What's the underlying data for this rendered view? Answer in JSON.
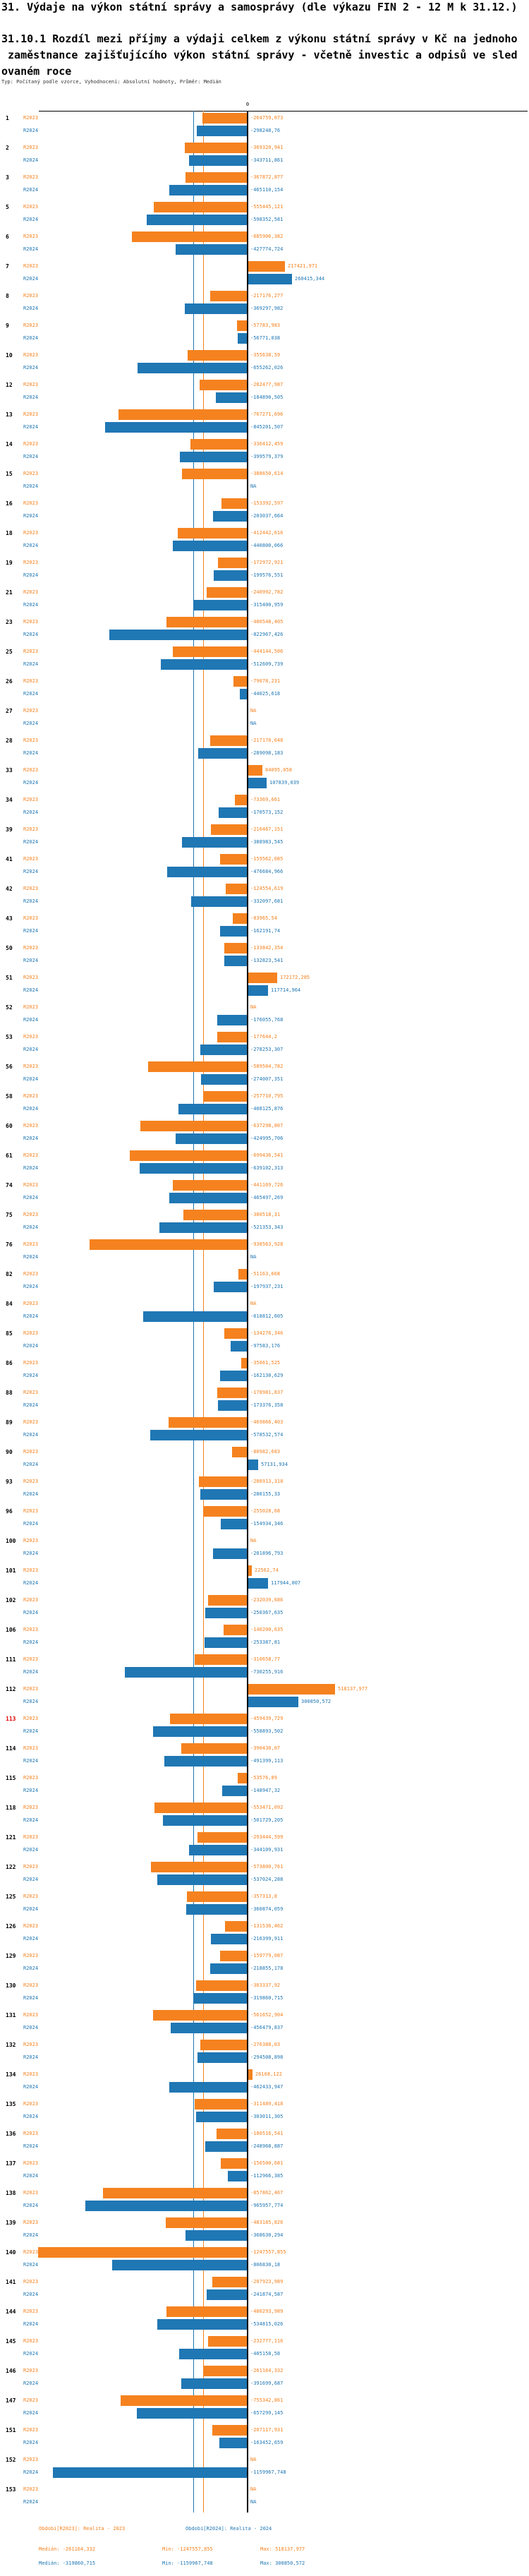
{
  "title": "31. Výdaje na výkon státní správy a samosprávy (dle výkazu FIN 2 - 12 M k 31.12.)",
  "subtitle_lines": [
    "31.10.1 Rozdíl mezi příjmy a výdaji celkem z výkonu státní správy v Kč na jednoho",
    " zaměstnance zajišťujícího výkon státní správy - včetně investic a odpisů ve sled",
    "ovaném roce"
  ],
  "meta": "Typ: Počítaný podle vzorce, Vyhodnocení: Absolutní hodnoty, Průměr: Medián",
  "chart_data": {
    "type": "bar",
    "orientation": "horizontal",
    "unit": "Kč",
    "zero_label": "0",
    "series_labels": {
      "r2023": "R2023",
      "r2024": "R2024"
    },
    "colors": {
      "r2023": "#f5821f",
      "r2024": "#1f77b4",
      "axis": "#000000",
      "highlight": "#e00000"
    },
    "medians": {
      "r2023": -261164.332,
      "r2024": -319860.715
    },
    "x_range": [
      -1310000,
      560000
    ],
    "rows": [
      {
        "n": "1",
        "r2023": "-264759,073",
        "r2024": "-298248,76"
      },
      {
        "n": "2",
        "r2023": "-369320,941",
        "r2024": "-343711,861"
      },
      {
        "n": "3",
        "r2023": "-367872,877",
        "r2024": "-465110,154"
      },
      {
        "n": "5",
        "r2023": "-555445,121",
        "r2024": "-598352,581"
      },
      {
        "n": "6",
        "r2023": "-685906,382",
        "r2024": "-427774,724"
      },
      {
        "n": "7",
        "r2023": "217421,971",
        "r2024": "260415,344"
      },
      {
        "n": "8",
        "r2023": "-217176,277",
        "r2024": "-369297,982"
      },
      {
        "n": "9",
        "r2023": "-57783,983",
        "r2024": "-56771,038"
      },
      {
        "n": "10",
        "r2023": "-355638,59",
        "r2024": "-655262,026"
      },
      {
        "n": "12",
        "r2023": "-282477,987",
        "r2024": "-184890,505"
      },
      {
        "n": "13",
        "r2023": "-767271,696",
        "r2024": "-845201,507"
      },
      {
        "n": "14",
        "r2023": "-336412,459",
        "r2024": "-399579,379"
      },
      {
        "n": "15",
        "r2023": "-388650,614",
        "r2024": "NA"
      },
      {
        "n": "16",
        "r2023": "-153392,597",
        "r2024": "-203037,664"
      },
      {
        "n": "18",
        "r2023": "-412442,616",
        "r2024": "-440800,066"
      },
      {
        "n": "19",
        "r2023": "-172972,921",
        "r2024": "-199576,551"
      },
      {
        "n": "21",
        "r2023": "-240992,782",
        "r2024": "-315400,959"
      },
      {
        "n": "23",
        "r2023": "-480548,405",
        "r2024": "-822967,426"
      },
      {
        "n": "25",
        "r2023": "-444144,506",
        "r2024": "-512609,739"
      },
      {
        "n": "26",
        "r2023": "-79078,231",
        "r2024": "-44025,618"
      },
      {
        "n": "27",
        "r2023": "NA",
        "r2024": "NA"
      },
      {
        "n": "28",
        "r2023": "-217170,648",
        "r2024": "-289098,183"
      },
      {
        "n": "33",
        "r2023": "84095,058",
        "r2024": "107839,039"
      },
      {
        "n": "34",
        "r2023": "-73369,661",
        "r2024": "-170573,152"
      },
      {
        "n": "39",
        "r2023": "-216467,151",
        "r2024": "-388983,545"
      },
      {
        "n": "41",
        "r2023": "-159562,085",
        "r2024": "-476684,966"
      },
      {
        "n": "42",
        "r2023": "-124554,619",
        "r2024": "-332097,681"
      },
      {
        "n": "43",
        "r2023": "-83965,54",
        "r2024": "-162191,74"
      },
      {
        "n": "50",
        "r2023": "-133842,354",
        "r2024": "-132823,541"
      },
      {
        "n": "51",
        "r2023": "172172,285",
        "r2024": "117714,964"
      },
      {
        "n": "52",
        "r2023": "NA",
        "r2024": "-176055,768"
      },
      {
        "n": "53",
        "r2023": "-177644,2",
        "r2024": "-278253,307"
      },
      {
        "n": "56",
        "r2023": "-589504,782",
        "r2024": "-274007,351"
      },
      {
        "n": "58",
        "r2023": "-257710,795",
        "r2024": "-408125,876"
      },
      {
        "n": "60",
        "r2023": "-637298,807",
        "r2024": "-424995,706"
      },
      {
        "n": "61",
        "r2023": "-699436,541",
        "r2024": "-639102,313"
      },
      {
        "n": "74",
        "r2023": "-441169,726",
        "r2024": "-465497,269"
      },
      {
        "n": "75",
        "r2023": "-380518,31",
        "r2024": "-521353,343"
      },
      {
        "n": "76",
        "r2023": "-938563,928",
        "r2024": "NA"
      },
      {
        "n": "82",
        "r2023": "-51163,668",
        "r2024": "-197937,231"
      },
      {
        "n": "84",
        "r2023": "NA",
        "r2024": "-618812,605"
      },
      {
        "n": "85",
        "r2023": "-134276,346",
        "r2024": "-97583,176"
      },
      {
        "n": "86",
        "r2023": "-35061,525",
        "r2024": "-162130,629"
      },
      {
        "n": "88",
        "r2023": "-178981,837",
        "r2024": "-173376,358"
      },
      {
        "n": "89",
        "r2023": "-469866,403",
        "r2024": "-578532,574"
      },
      {
        "n": "90",
        "r2023": "-88982,683",
        "r2024": "57131,934"
      },
      {
        "n": "93",
        "r2023": "-286913,318",
        "r2024": "-280155,33"
      },
      {
        "n": "96",
        "r2023": "-255028,68",
        "r2024": "-154934,346"
      },
      {
        "n": "100",
        "r2023": "NA",
        "r2024": "-201896,793"
      },
      {
        "n": "101",
        "r2023": "22562,74",
        "r2024": "117944,007"
      },
      {
        "n": "102",
        "r2023": "-232039,686",
        "r2024": "-250367,635"
      },
      {
        "n": "106",
        "r2023": "-140200,635",
        "r2024": "-253387,81"
      },
      {
        "n": "111",
        "r2023": "-310658,77",
        "r2024": "-730255,916"
      },
      {
        "n": "112",
        "r2023": "518137,977",
        "r2024": "300850,572"
      },
      {
        "n": "113",
        "r2023": "-459439,729",
        "r2024": "-558893,502",
        "hl": true
      },
      {
        "n": "114",
        "r2023": "-390430,07",
        "r2024": "-491399,113"
      },
      {
        "n": "115",
        "r2023": "-53576,89",
        "r2024": "-148947,32"
      },
      {
        "n": "118",
        "r2023": "-553471,092",
        "r2024": "-501729,205"
      },
      {
        "n": "121",
        "r2023": "-293444,599",
        "r2024": "-344109,931"
      },
      {
        "n": "122",
        "r2023": "-573800,761",
        "r2024": "-537024,288"
      },
      {
        "n": "125",
        "r2023": "-357313,8",
        "r2024": "-360874,059"
      },
      {
        "n": "126",
        "r2023": "-131536,462",
        "r2024": "-216399,911"
      },
      {
        "n": "129",
        "r2023": "-159779,087",
        "r2024": "-218855,178"
      },
      {
        "n": "130",
        "r2023": "-303337,92",
        "r2024": "-319860,715"
      },
      {
        "n": "131",
        "r2023": "-561652,904",
        "r2024": "-456479,837"
      },
      {
        "n": "132",
        "r2023": "-276388,03",
        "r2024": "-294508,898"
      },
      {
        "n": "134",
        "r2023": "26168,122",
        "r2024": "-462433,947"
      },
      {
        "n": "135",
        "r2023": "-311489,418",
        "r2024": "-303011,305"
      },
      {
        "n": "136",
        "r2023": "-180516,541",
        "r2024": "-248968,887"
      },
      {
        "n": "137",
        "r2023": "-156500,681",
        "r2024": "-112966,385"
      },
      {
        "n": "138",
        "r2023": "-857862,467",
        "r2024": "-965957,774"
      },
      {
        "n": "139",
        "r2023": "-483185,826",
        "r2024": "-368630,294"
      },
      {
        "n": "140",
        "r2023": "-1247557,855",
        "r2024": "-806830,18"
      },
      {
        "n": "141",
        "r2023": "-207923,989",
        "r2024": "-241874,587"
      },
      {
        "n": "144",
        "r2023": "-480293,989",
        "r2024": "-534815,026"
      },
      {
        "n": "145",
        "r2023": "-232777,116",
        "r2024": "-405158,58"
      },
      {
        "n": "146",
        "r2023": "-261164,332",
        "r2024": "-391699,687"
      },
      {
        "n": "147",
        "r2023": "-755342,861",
        "r2024": "-657299,145"
      },
      {
        "n": "151",
        "r2023": "-207117,931",
        "r2024": "-163452,659"
      },
      {
        "n": "152",
        "r2023": "NA",
        "r2024": "-1159967,748"
      },
      {
        "n": "153",
        "r2023": "NA",
        "r2024": "NA"
      }
    ]
  },
  "footer": {
    "legend_r2023": "Období[R2023]: Realita - 2023",
    "legend_r2024": "Období[R2024]: Realita - 2024",
    "r2023": {
      "median": "Medián: -261164,332",
      "min": "Min: -1247557,855",
      "max": "Max: 518137,977"
    },
    "r2024": {
      "median": "Medián: -319860,715",
      "min": "Min: -1159967,748",
      "max": "Max: 300850,572"
    }
  }
}
